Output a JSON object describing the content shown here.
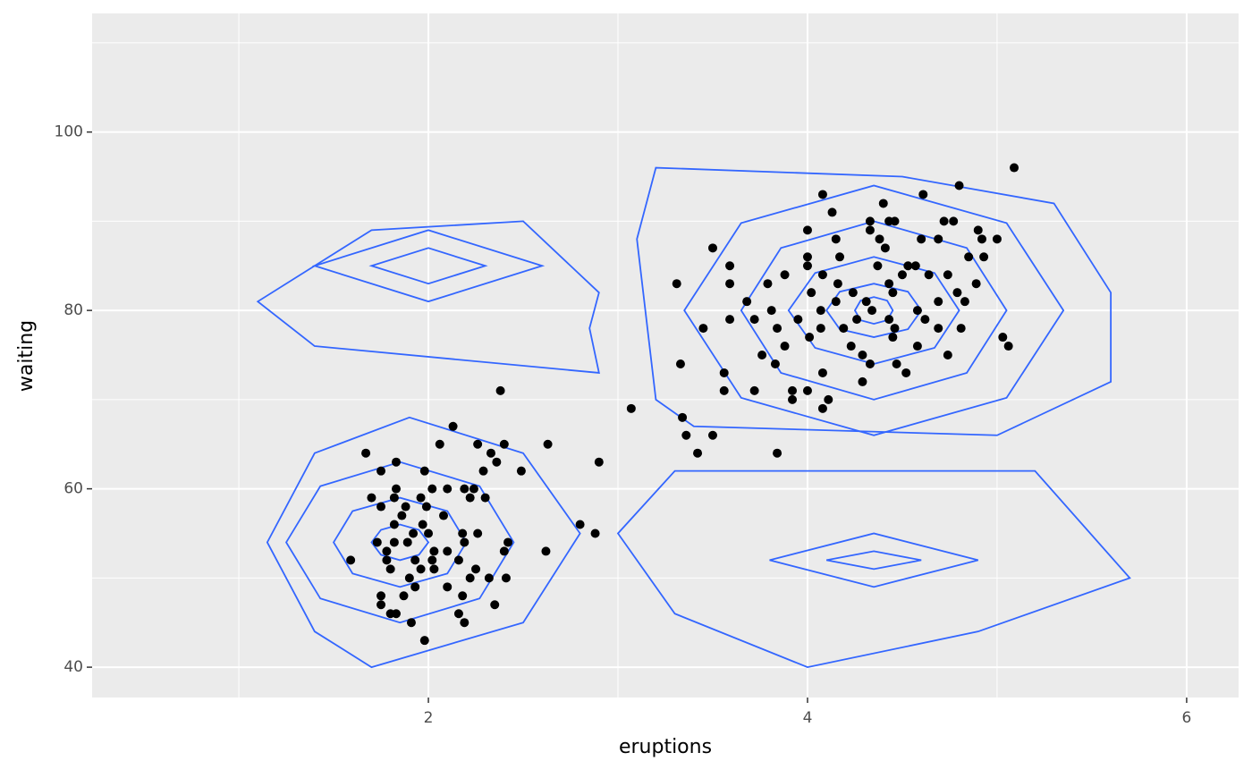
{
  "chart_data": {
    "type": "scatter",
    "x_label": "eruptions",
    "y_label": "waiting",
    "xlim": [
      0.226,
      6.274
    ],
    "ylim": [
      36.6,
      113.3
    ],
    "xticks": [
      2,
      4,
      6
    ],
    "yticks": [
      40,
      60,
      80,
      100
    ],
    "x_minor_ticks": [
      1,
      3,
      5
    ],
    "y_minor_ticks": [
      50,
      70,
      90,
      110
    ],
    "grid": true,
    "panel_color": "#EBEBEB",
    "color": "#000000",
    "x": [
      5.09,
      4.8,
      4.08,
      4.61,
      4.13,
      4.4,
      4.33,
      4.43,
      4.46,
      4.72,
      4.77,
      4.0,
      4.33,
      4.9,
      4.15,
      4.38,
      4.6,
      4.69,
      4.92,
      5.0,
      3.5,
      4.41,
      4.0,
      4.17,
      4.85,
      4.93,
      3.59,
      4.0,
      4.37,
      4.53,
      4.57,
      3.88,
      4.08,
      4.5,
      4.64,
      4.74,
      3.31,
      3.59,
      3.79,
      4.16,
      4.43,
      4.89,
      4.02,
      4.24,
      4.45,
      4.79,
      4.15,
      4.31,
      4.69,
      4.83,
      3.68,
      3.81,
      4.07,
      4.34,
      4.58,
      3.59,
      3.72,
      3.95,
      4.26,
      4.43,
      4.62,
      3.45,
      3.84,
      4.07,
      4.19,
      4.46,
      4.69,
      4.81,
      4.01,
      4.45,
      5.03,
      3.88,
      4.23,
      4.58,
      5.06,
      3.76,
      4.29,
      4.74,
      3.83,
      4.33,
      4.47,
      3.33,
      3.56,
      4.08,
      4.52,
      4.29,
      2.38,
      3.56,
      3.72,
      3.92,
      4.0,
      3.92,
      4.11,
      4.08,
      3.07,
      3.34,
      3.36,
      3.5,
      2.06,
      2.26,
      2.4,
      2.63,
      3.42,
      1.67,
      2.33,
      2.36,
      1.83,
      2.9,
      2.13,
      3.84,
      1.75,
      1.98,
      2.29,
      2.49,
      1.83,
      2.02,
      2.1,
      2.19,
      2.24,
      1.7,
      1.82,
      1.96,
      2.22,
      2.3,
      1.75,
      1.88,
      1.99,
      2.08,
      1.86,
      2.8,
      1.97,
      1.82,
      2.88,
      1.92,
      2.0,
      2.18,
      2.26,
      1.73,
      1.82,
      1.89,
      2.19,
      2.42,
      1.78,
      2.03,
      2.1,
      2.4,
      2.62,
      1.59,
      1.78,
      1.93,
      2.02,
      2.16,
      1.8,
      1.96,
      2.03,
      2.25,
      1.9,
      2.22,
      2.32,
      2.41,
      1.93,
      2.1,
      2.18,
      1.75,
      1.87,
      1.75,
      2.35,
      1.8,
      2.16,
      1.83,
      2.19,
      1.91,
      1.98
    ],
    "y": [
      96,
      94,
      93,
      93,
      91,
      92,
      90,
      90,
      90,
      90,
      90,
      89,
      89,
      89,
      88,
      88,
      88,
      88,
      88,
      88,
      87,
      87,
      86,
      86,
      86,
      86,
      85,
      85,
      85,
      85,
      85,
      84,
      84,
      84,
      84,
      84,
      83,
      83,
      83,
      83,
      83,
      83,
      82,
      82,
      82,
      82,
      81,
      81,
      81,
      81,
      81,
      80,
      80,
      80,
      80,
      79,
      79,
      79,
      79,
      79,
      79,
      78,
      78,
      78,
      78,
      78,
      78,
      78,
      77,
      77,
      77,
      76,
      76,
      76,
      76,
      75,
      75,
      75,
      74,
      74,
      74,
      74,
      73,
      73,
      73,
      72,
      71,
      71,
      71,
      71,
      71,
      70,
      70,
      69,
      69,
      68,
      66,
      66,
      65,
      65,
      65,
      65,
      64,
      64,
      64,
      63,
      63,
      63,
      67,
      64,
      62,
      62,
      62,
      62,
      60,
      60,
      60,
      60,
      60,
      59,
      59,
      59,
      59,
      59,
      58,
      58,
      58,
      57,
      57,
      56,
      56,
      56,
      55,
      55,
      55,
      55,
      55,
      54,
      54,
      54,
      54,
      54,
      53,
      53,
      53,
      53,
      53,
      52,
      52,
      52,
      52,
      52,
      51,
      51,
      51,
      51,
      50,
      50,
      50,
      50,
      49,
      49,
      48,
      48,
      48,
      47,
      47,
      46,
      46,
      46,
      45,
      45,
      43
    ],
    "contours": {
      "color": "#3366FF",
      "lines": [
        {
          "x": [
            4.45,
            4.42,
            4.35,
            4.28,
            4.25,
            4.28,
            4.35,
            4.42
          ],
          "y": [
            80,
            81.1,
            81.5,
            81.1,
            80,
            78.9,
            78.5,
            78.9
          ]
        },
        {
          "x": [
            4.6,
            4.53,
            4.35,
            4.17,
            4.1,
            4.17,
            4.35,
            4.53
          ],
          "y": [
            80,
            82.1,
            83,
            82.1,
            80,
            77.9,
            77,
            77.9
          ]
        },
        {
          "x": [
            4.8,
            4.67,
            4.35,
            4.04,
            3.9,
            4.04,
            4.35,
            4.67
          ],
          "y": [
            80,
            84.2,
            86,
            84.2,
            80,
            75.8,
            74,
            75.8
          ]
        },
        {
          "x": [
            5.05,
            4.84,
            4.35,
            3.86,
            3.65,
            3.86,
            4.35,
            4.84
          ],
          "y": [
            80,
            87,
            90,
            87,
            80,
            73,
            70,
            73
          ]
        },
        {
          "x": [
            5.35,
            5.05,
            4.35,
            3.65,
            3.35,
            3.65,
            4.35,
            5.05
          ],
          "y": [
            80,
            89.8,
            94,
            89.8,
            80,
            70.2,
            66,
            70.2
          ]
        },
        {
          "x": [
            5.6,
            5.3,
            4.5,
            3.2,
            3.1,
            3.2,
            3.4,
            5.0,
            5.6
          ],
          "y": [
            82,
            92,
            95,
            96,
            88,
            70,
            67,
            66,
            72
          ]
        },
        {
          "x": [
            2.0,
            1.95,
            1.85,
            1.75,
            1.7,
            1.75,
            1.85,
            1.95
          ],
          "y": [
            54,
            55.4,
            56,
            55.4,
            54,
            52.6,
            52,
            52.6
          ]
        },
        {
          "x": [
            2.2,
            2.1,
            1.85,
            1.6,
            1.5,
            1.6,
            1.85,
            2.1
          ],
          "y": [
            54,
            57.5,
            59,
            57.5,
            54,
            50.5,
            49,
            50.5
          ]
        },
        {
          "x": [
            2.45,
            2.27,
            1.85,
            1.43,
            1.25,
            1.43,
            1.85,
            2.27
          ],
          "y": [
            54,
            60.3,
            63,
            60.3,
            54,
            47.7,
            45,
            47.7
          ]
        },
        {
          "x": [
            2.8,
            2.5,
            1.9,
            1.4,
            1.15,
            1.4,
            1.7,
            2.5
          ],
          "y": [
            55,
            64,
            68,
            64,
            54,
            44,
            40,
            45
          ]
        },
        {
          "x": [
            2.3,
            2.0,
            1.7,
            2.0
          ],
          "y": [
            85,
            87,
            85,
            83
          ]
        },
        {
          "x": [
            2.6,
            2.0,
            1.4,
            2.0
          ],
          "y": [
            85,
            89,
            85,
            81
          ]
        },
        {
          "x": [
            2.9,
            2.5,
            1.7,
            1.1,
            1.4,
            2.9,
            2.85
          ],
          "y": [
            82,
            90,
            89,
            81,
            76,
            73,
            78
          ]
        },
        {
          "x": [
            4.6,
            4.35,
            4.1,
            4.35
          ],
          "y": [
            52,
            53,
            52,
            51
          ]
        },
        {
          "x": [
            4.9,
            4.35,
            3.8,
            4.35
          ],
          "y": [
            52,
            55,
            52,
            49
          ]
        },
        {
          "x": [
            5.7,
            5.2,
            3.3,
            3.0,
            3.3,
            4.0,
            4.9
          ],
          "y": [
            50,
            62,
            62,
            55,
            46,
            40,
            44
          ]
        }
      ]
    }
  }
}
